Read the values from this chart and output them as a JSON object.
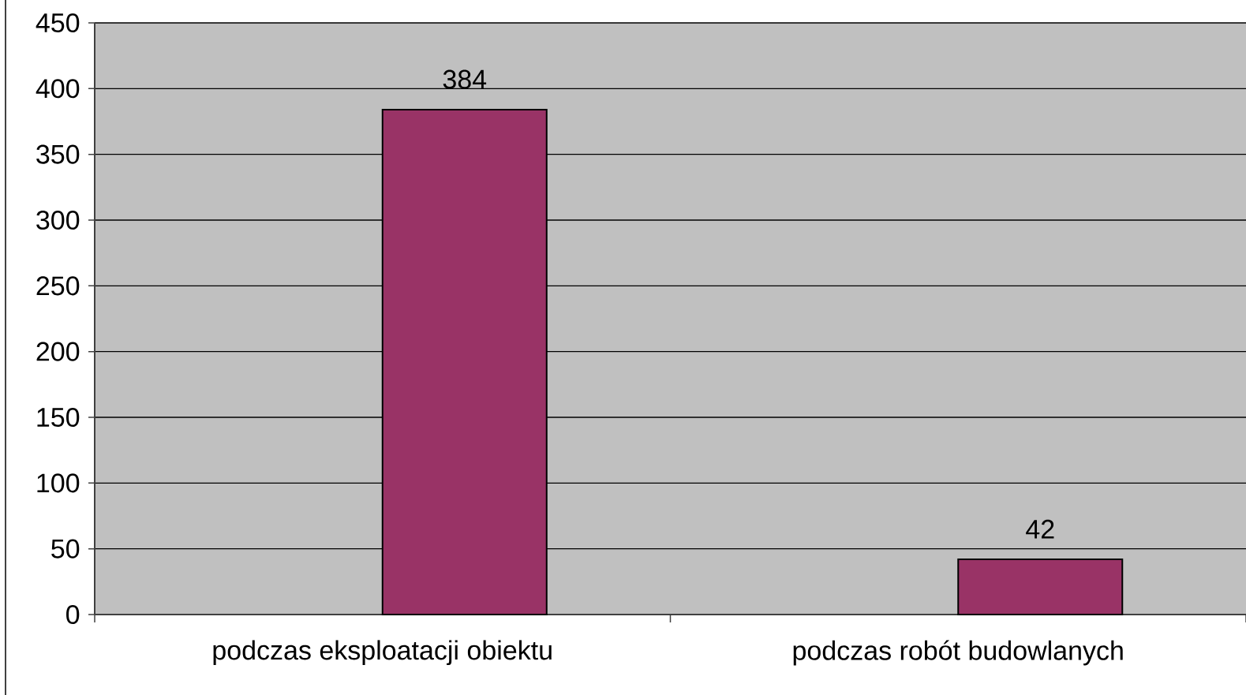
{
  "chart_data": {
    "type": "bar",
    "categories": [
      "podczas eksploatacji obiektu",
      "podczas robót budowlanych"
    ],
    "values": [
      384,
      42
    ],
    "color": "#993366",
    "ylim": [
      0,
      450
    ],
    "yticks": [
      0,
      50,
      100,
      150,
      200,
      250,
      300,
      350,
      400,
      450
    ],
    "grid": "y",
    "data_labels": true
  }
}
